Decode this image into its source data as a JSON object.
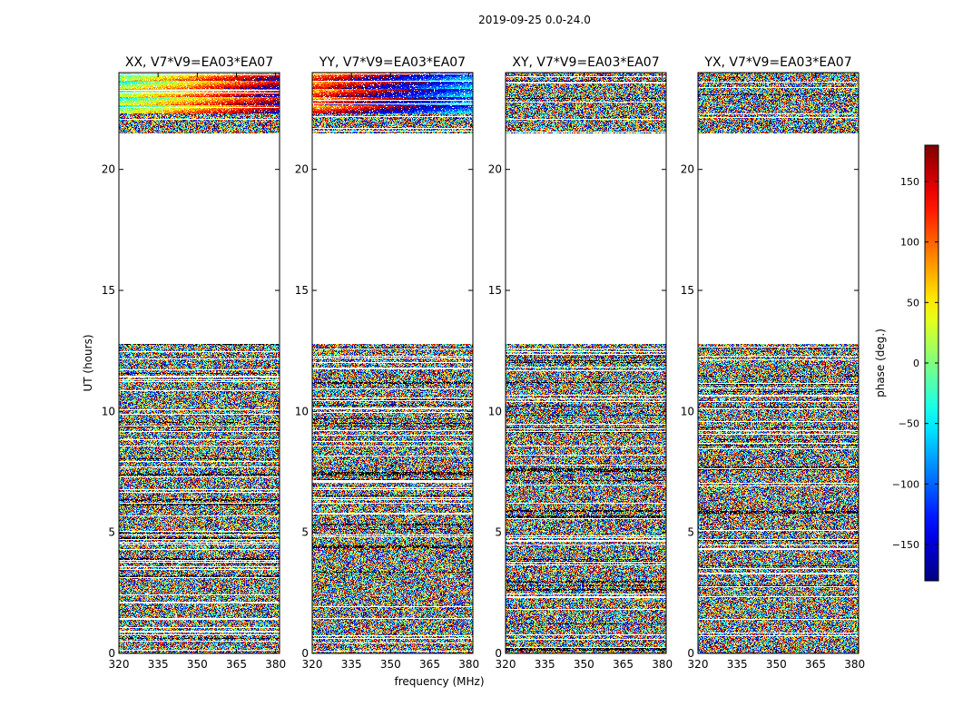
{
  "suptitle": "2019-09-25 0.0-24.0",
  "chart_data": {
    "type": "heatmap",
    "panels": [
      {
        "title": "XX, V7*V9=EA03*EA07",
        "pol": "XX"
      },
      {
        "title": "YY, V7*V9=EA03*EA07",
        "pol": "YY"
      },
      {
        "title": "XY, V7*V9=EA03*EA07",
        "pol": "XY"
      },
      {
        "title": "YX, V7*V9=EA03*EA07",
        "pol": "YX"
      }
    ],
    "xlabel": "frequency (MHz)",
    "ylabel": "UT (hours)",
    "xlim": [
      320,
      381.5
    ],
    "ylim": [
      0,
      24
    ],
    "xticks": [
      320,
      335,
      350,
      365,
      380
    ],
    "yticks": [
      0,
      5,
      10,
      15,
      20
    ],
    "colorbar": {
      "label": "phase (deg.)",
      "range": [
        -180,
        180
      ],
      "ticks": [
        -150,
        -100,
        -50,
        0,
        50,
        100,
        150
      ],
      "tick_labels": [
        "−150",
        "−100",
        "−50",
        "0",
        "50",
        "100",
        "150"
      ],
      "colormap": "jet"
    },
    "data_blocks_ut": [
      [
        0,
        12.8
      ],
      [
        21.5,
        24
      ]
    ],
    "empty_range_ut": [
      12.8,
      21.5
    ]
  }
}
